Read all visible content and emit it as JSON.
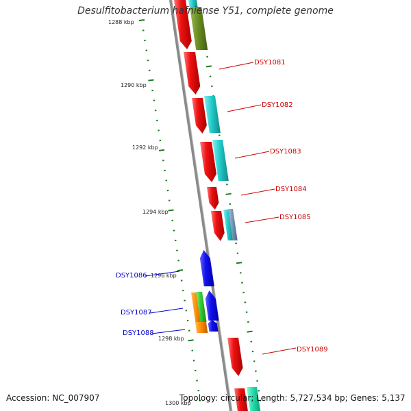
{
  "title": "Desulfitobacterium hafniense Y51, complete genome",
  "accession": "Accession: NC_007907",
  "topology": "Topology: circular; Length: 5,727,534 bp; Genes: 5,137",
  "kbp_labels": [
    "1288 kbp",
    "1290 kbp",
    "1292 kbp",
    "1294 kbp",
    "1296 kbp",
    "1298 kbp",
    "1300 kbp"
  ],
  "gene_labels": {
    "dsy1081": "DSY1081",
    "dsy1082": "DSY1082",
    "dsy1083": "DSY1083",
    "dsy1084": "DSY1084",
    "dsy1085": "DSY1085",
    "dsy1086": "DSY1086",
    "dsy1087": "DSY1087",
    "dsy1088": "DSY1088",
    "dsy1089": "DSY1089"
  },
  "colors": {
    "backbone": "#8a8a8a",
    "tick": "#1f7a1f",
    "forward_gene": "#ee1111",
    "reverse_gene": "#1111ee",
    "forward_label": "#cc0000",
    "reverse_label": "#0000cc",
    "cyan_gene": "#22cccc",
    "olive_gene": "#6b8e23",
    "orange_gene": "#ff8c00",
    "green_gene": "#33cc33",
    "steel_gene": "#7799bb",
    "teal_gene": "#22ddaa"
  }
}
